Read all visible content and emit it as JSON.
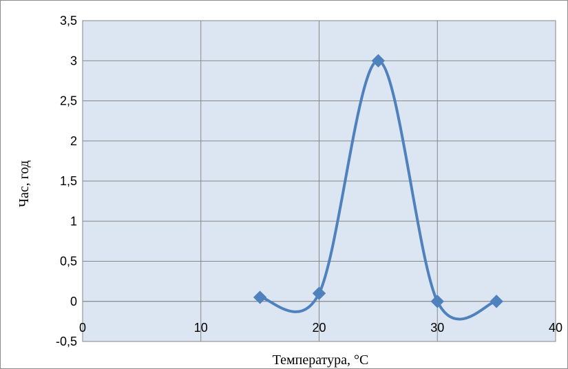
{
  "chart_data": {
    "type": "scatter",
    "style": "smooth line with diamond markers",
    "title": "",
    "xlabel": "Температура, °C",
    "ylabel": "Час, год",
    "xlim": [
      0,
      40
    ],
    "ylim": [
      -0.5,
      3.5
    ],
    "x_ticks": [
      0,
      10,
      20,
      30,
      40
    ],
    "y_ticks": [
      -0.5,
      0,
      0.5,
      1,
      1.5,
      2,
      2.5,
      3,
      3.5
    ],
    "x_tick_labels": [
      "0",
      "10",
      "20",
      "30",
      "40"
    ],
    "y_tick_labels": [
      "-0,5",
      "0",
      "0,5",
      "1",
      "1,5",
      "2",
      "2,5",
      "3",
      "3,5"
    ],
    "grid": true,
    "legend": "none",
    "series": [
      {
        "x": [
          15,
          20,
          25,
          30,
          35
        ],
        "y": [
          0.05,
          0.1,
          3,
          0,
          0
        ],
        "color": "#4f81bd"
      }
    ],
    "colors": {
      "plot_background": "#dce6f2",
      "grid": "#868686",
      "series": "#4f81bd"
    }
  }
}
